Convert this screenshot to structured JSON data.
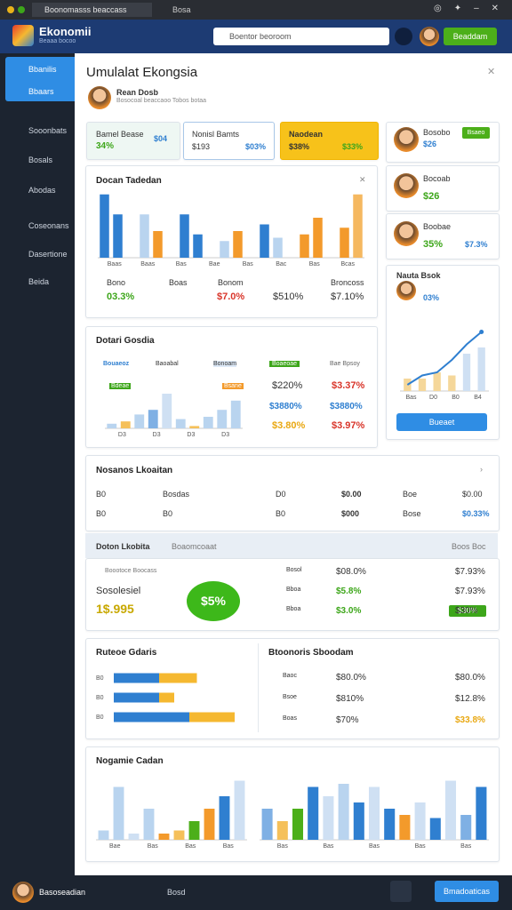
{
  "window": {
    "tabs": [
      "Boonomasss beaccass",
      "Bosa"
    ]
  },
  "header": {
    "logo": "Ekonomii",
    "logo_sub": "Beaaa bocoo",
    "search": "Boentor beoroom",
    "button": "Beaddam"
  },
  "sidebar": {
    "items": [
      "Bbanilis",
      "Bbaars",
      "Sooonbats",
      "Bosals",
      "Abodas",
      "Coseonans",
      "Dasertione",
      "Beida"
    ]
  },
  "page": {
    "title": "Umulalat Ekongsia",
    "user": "Rean Dosb",
    "user_sub": "Bosocoal beaccaoo Tobos botaa"
  },
  "stats": [
    {
      "label": "Bamel Bease",
      "value": "34%",
      "sub": "$04"
    },
    {
      "label": "Nonisl Bamts",
      "value": "$193",
      "sub": "$03%"
    },
    {
      "label": "Naodean",
      "value": "$38%",
      "sub": "$33%"
    }
  ],
  "people": [
    {
      "name": "Bosobo",
      "value": "$26",
      "button": "Bsaeo"
    },
    {
      "name": "Bocoab",
      "value": "$26"
    },
    {
      "name": "Boobae",
      "value": "35%",
      "value2": "$7.3%"
    }
  ],
  "chart1": {
    "title": "Docan Tadedan",
    "plot": {
      "type": "bar",
      "ylim": [
        0,
        10
      ],
      "values": [
        9.5,
        6.5,
        0,
        6.5,
        4,
        0,
        6.5,
        3.5,
        0,
        2.5,
        4,
        0,
        5,
        3,
        0,
        3.5,
        6,
        0,
        4.5,
        9.5
      ],
      "colors": [
        "#2f7fd0",
        "#2f7fd0",
        "#fff",
        "#b9d4ef",
        "#f39a2b",
        "#fff",
        "#2f7fd0",
        "#2f7fd0",
        "#fff",
        "#b9d4ef",
        "#f39a2b",
        "#fff",
        "#2f7fd0",
        "#b9d4ef",
        "#fff",
        "#f39a2b",
        "#f39a2b",
        "#fff",
        "#f39a2b",
        "#f5b860"
      ],
      "categories": [
        "Baas",
        "Baas",
        "Bas",
        "Bae",
        "Bas",
        "Bac",
        "Bas",
        "Bcas"
      ]
    },
    "labels": [
      "Bono",
      "Boas",
      "Bonom",
      "Broncoss"
    ],
    "values": [
      "03.3%",
      "$7.0%",
      "$510%",
      "$7.10%"
    ]
  },
  "chart2": {
    "title": "Dotari Gosdia",
    "legend": [
      "Bouaeoz",
      "Baoabal",
      "Bonoam"
    ],
    "tags": [
      "Bdeae",
      "Bsane"
    ],
    "plot": {
      "type": "bar",
      "ylim": [
        0,
        10
      ],
      "values": [
        1,
        1.5,
        3,
        4,
        7.5,
        2,
        0.5,
        2.5,
        4,
        6
      ],
      "colors": [
        "#b9d4ef",
        "#f5c05a",
        "#b9d4ef",
        "#7fb0e4",
        "#cfe0f3",
        "#b9d4ef",
        "#f5c05a",
        "#b9d4ef",
        "#b9d4ef",
        "#b9d4ef"
      ],
      "categories": [
        "D3",
        "D3",
        "D3",
        "D3"
      ]
    },
    "headers": [
      "Boaeoae",
      "Bae Bpsoy"
    ],
    "values": [
      "$220%",
      "$3.37%",
      "$3880%",
      "$3880%",
      "$3.80%",
      "$3.97%"
    ]
  },
  "trend": {
    "title": "Nauta Bsok",
    "value": "03%",
    "button": "Bueaet",
    "plot": {
      "type": "linebar",
      "ylim": [
        0,
        10
      ],
      "line": [
        1,
        2.5,
        3,
        5,
        7.5,
        9.5
      ],
      "bars": [
        2,
        2,
        3,
        2.5,
        6,
        7
      ],
      "line_color": "#2f7fd0",
      "bar_colors": [
        "#f5d79a",
        "#f5d79a",
        "#f5d79a",
        "#f5d79a",
        "#cfe0f3",
        "#cfe0f3"
      ],
      "categories": [
        "Bas",
        "D0",
        "B0",
        "B4"
      ]
    }
  },
  "table": {
    "title": "Nosanos Lkoaitan",
    "rows": [
      [
        "B0",
        "Bosdas",
        "D0",
        "$0.00",
        "Boe",
        "$0.00"
      ],
      [
        "B0",
        "B0",
        "B0",
        "$000",
        "Bose",
        "$0.33%"
      ]
    ]
  },
  "summary": {
    "title": "Doton Lkobita",
    "tab": "Boaomcoaat",
    "right": "Boos Boc",
    "caption": "Boootoce Boocass",
    "label": "Sosolesiel",
    "value": "1$.995",
    "badge": "$5%",
    "rows": [
      [
        "Bosol",
        "$08.0%",
        "$7.93%"
      ],
      [
        "Bboa",
        "$5.8%",
        "$7.93%"
      ],
      [
        "Bboa",
        "$3.0%",
        "$30%"
      ]
    ],
    "tag": "$30%"
  },
  "routes": {
    "title": "Ruteoe Gdaris",
    "plot": {
      "type": "hbar",
      "xlim": [
        0,
        10
      ],
      "categories": [
        "B0",
        "B0",
        "B0"
      ],
      "series": [
        {
          "color": "#2f7fd0",
          "values": [
            3,
            3,
            5
          ]
        },
        {
          "color": "#f5b830",
          "values": [
            2.5,
            1,
            3
          ]
        }
      ]
    }
  },
  "balance": {
    "title": "Btoonoris Sboodam",
    "rows": [
      [
        "Baoc",
        "$80.0%",
        "$80.0%"
      ],
      [
        "Bsoe",
        "$810%",
        "$12.8%"
      ],
      [
        "Boas",
        "$70%",
        "$33.8%"
      ]
    ]
  },
  "bottom": {
    "title": "Nogamie Cadan",
    "left": {
      "type": "bar",
      "ylim": [
        0,
        10
      ],
      "values": [
        1.5,
        8.5,
        1,
        5,
        1,
        1.5,
        3,
        5,
        7,
        9.5
      ],
      "colors": [
        "#b9d4ef",
        "#b9d4ef",
        "#cfe0f3",
        "#b9d4ef",
        "#f39a2b",
        "#f5c05a",
        "#4caf1a",
        "#f39a2b",
        "#2f7fd0",
        "#cfe0f3"
      ],
      "categories": [
        "Bae",
        "Bas",
        "Bas",
        "Bas"
      ]
    },
    "right": {
      "type": "bar",
      "ylim": [
        0,
        10
      ],
      "values": [
        5,
        3,
        5,
        8.5,
        7,
        9,
        6,
        8.5,
        5,
        4,
        6,
        3.5,
        9.5,
        4,
        8.5
      ],
      "colors": [
        "#7fb0e4",
        "#f5c05a",
        "#4caf1a",
        "#2f7fd0",
        "#cfe0f3",
        "#b9d4ef",
        "#2f7fd0",
        "#cfe0f3",
        "#2f7fd0",
        "#f39a2b",
        "#cfe0f3",
        "#2f7fd0",
        "#cfe0f3",
        "#7fb0e4",
        "#2f7fd0"
      ],
      "categories": [
        "Bas",
        "Bas",
        "Bas",
        "Bas",
        "Bas"
      ]
    }
  },
  "footer": {
    "user": "Basoseadian",
    "item": "Bosd",
    "button": "Bmadoaticas"
  }
}
